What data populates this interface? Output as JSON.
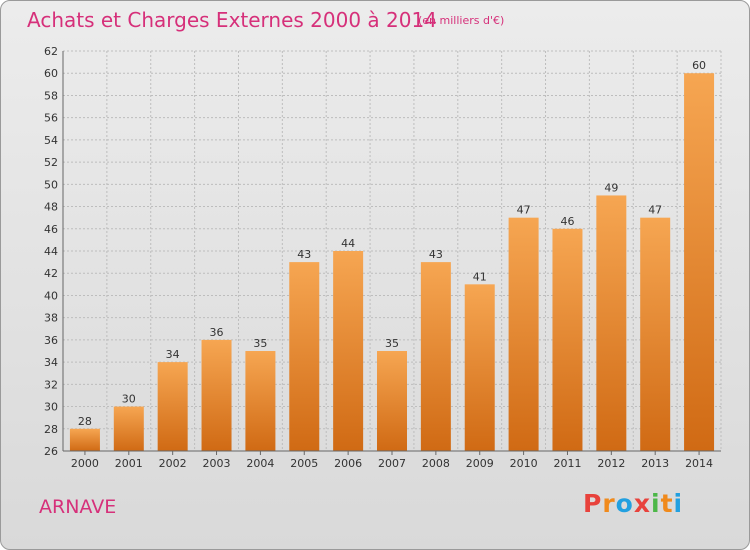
{
  "title": "Achats et Charges Externes 2000 à 2014",
  "subtitle": "(en milliers d'€)",
  "place": "ARNAVE",
  "logo": {
    "letters": [
      "P",
      "r",
      "o",
      "x",
      "i",
      "t",
      "i"
    ],
    "colors": [
      "#e8423c",
      "#f08a1c",
      "#22a0e0",
      "#e8423c",
      "#4cb748",
      "#f08a1c",
      "#22a0e0"
    ]
  },
  "colors": {
    "bar_top": "#f6a652",
    "bar_bottom": "#d06a14",
    "grid": "#bdbdbd",
    "accent": "#d6307a"
  },
  "chart_data": {
    "type": "bar",
    "title": "Achats et Charges Externes 2000 à 2014",
    "subtitle": "(en milliers d'€)",
    "categories": [
      "2000",
      "2001",
      "2002",
      "2003",
      "2004",
      "2005",
      "2006",
      "2007",
      "2008",
      "2009",
      "2010",
      "2011",
      "2012",
      "2013",
      "2014"
    ],
    "values": [
      28,
      30,
      34,
      36,
      35,
      43,
      44,
      35,
      43,
      41,
      47,
      46,
      49,
      47,
      60
    ],
    "ylim": [
      26,
      62
    ],
    "yticks": [
      26,
      28,
      30,
      32,
      34,
      36,
      38,
      40,
      42,
      44,
      46,
      48,
      50,
      52,
      54,
      56,
      58,
      60,
      62
    ],
    "grid": true,
    "legend": "none"
  }
}
